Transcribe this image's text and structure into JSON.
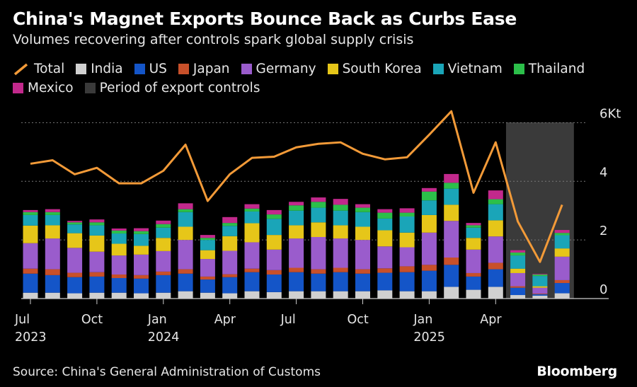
{
  "chart_data": {
    "type": "stacked_bar_line",
    "title": "China's Magnet Exports Bounce Back as Curbs Ease",
    "subtitle": "Volumes recovering after controls spark global supply crisis",
    "source": "Source: China's General Administration of Customs",
    "brand": "Bloomberg",
    "x": [
      "2023-07",
      "2023-08",
      "2023-09",
      "2023-10",
      "2023-11",
      "2023-12",
      "2024-01",
      "2024-02",
      "2024-03",
      "2024-04",
      "2024-05",
      "2024-06",
      "2024-07",
      "2024-08",
      "2024-09",
      "2024-10",
      "2024-11",
      "2024-12",
      "2025-01",
      "2025-02",
      "2025-03",
      "2025-04",
      "2025-05",
      "2025-06",
      "2025-07"
    ],
    "xticks": [
      {
        "value": "2023-07",
        "label": "Jul\n2023"
      },
      {
        "value": "2023-10",
        "label": "Oct"
      },
      {
        "value": "2024-01",
        "label": "Jan\n2024"
      },
      {
        "value": "2024-04",
        "label": "Apr"
      },
      {
        "value": "2024-07",
        "label": "Jul"
      },
      {
        "value": "2024-10",
        "label": "Oct"
      },
      {
        "value": "2025-01",
        "label": "Jan\n2025"
      },
      {
        "value": "2025-04",
        "label": "Apr"
      }
    ],
    "ylim": [
      0,
      6.3
    ],
    "yticks": [
      0,
      2,
      4,
      {
        "value": 6,
        "label": "6Kt"
      }
    ],
    "grid": true,
    "shaded": {
      "name": "Period of export controls",
      "color": "#3a3a3a",
      "from": "2025-05",
      "to": "2025-07"
    },
    "line": {
      "name": "Total",
      "color": "#f29a38",
      "values": [
        4.6,
        4.72,
        4.24,
        4.46,
        3.93,
        3.93,
        4.36,
        5.25,
        3.33,
        4.24,
        4.8,
        4.84,
        5.16,
        5.28,
        5.33,
        4.94,
        4.75,
        4.82,
        5.59,
        6.39,
        3.61,
        5.33,
        2.63,
        1.25,
        3.2
      ]
    },
    "series": [
      {
        "name": "India",
        "color": "#d0d0d0",
        "values": [
          0.2,
          0.2,
          0.18,
          0.2,
          0.2,
          0.18,
          0.2,
          0.25,
          0.2,
          0.18,
          0.25,
          0.22,
          0.25,
          0.25,
          0.25,
          0.25,
          0.28,
          0.25,
          0.25,
          0.4,
          0.3,
          0.4,
          0.12,
          0.1,
          0.18
        ]
      },
      {
        "name": "US",
        "color": "#1455c8",
        "values": [
          0.65,
          0.6,
          0.55,
          0.55,
          0.5,
          0.5,
          0.6,
          0.6,
          0.45,
          0.55,
          0.65,
          0.6,
          0.65,
          0.6,
          0.65,
          0.6,
          0.6,
          0.65,
          0.7,
          0.75,
          0.45,
          0.6,
          0.25,
          0.05,
          0.35
        ]
      },
      {
        "name": "Japan",
        "color": "#c8502a",
        "values": [
          0.17,
          0.2,
          0.15,
          0.15,
          0.12,
          0.12,
          0.12,
          0.15,
          0.1,
          0.1,
          0.12,
          0.15,
          0.15,
          0.15,
          0.15,
          0.15,
          0.15,
          0.2,
          0.2,
          0.25,
          0.12,
          0.22,
          0.05,
          0.02,
          0.1
        ]
      },
      {
        "name": "Germany",
        "color": "#9a5ccc",
        "values": [
          0.87,
          1.05,
          0.85,
          0.7,
          0.65,
          0.7,
          0.7,
          1.0,
          0.6,
          0.8,
          0.9,
          0.7,
          1.0,
          1.1,
          1.0,
          1.0,
          0.75,
          0.65,
          1.1,
          1.25,
          0.8,
          0.9,
          0.45,
          0.2,
          0.8
        ]
      },
      {
        "name": "South Korea",
        "color": "#e6c619",
        "values": [
          0.6,
          0.45,
          0.5,
          0.55,
          0.4,
          0.3,
          0.45,
          0.45,
          0.3,
          0.5,
          0.65,
          0.5,
          0.45,
          0.5,
          0.45,
          0.45,
          0.55,
          0.5,
          0.6,
          0.55,
          0.4,
          0.55,
          0.15,
          0.05,
          0.28
        ]
      },
      {
        "name": "Vietnam",
        "color": "#1aa5b8",
        "values": [
          0.36,
          0.35,
          0.3,
          0.35,
          0.35,
          0.4,
          0.35,
          0.5,
          0.35,
          0.35,
          0.4,
          0.55,
          0.5,
          0.5,
          0.5,
          0.5,
          0.4,
          0.55,
          0.5,
          0.55,
          0.35,
          0.55,
          0.45,
          0.35,
          0.45
        ]
      },
      {
        "name": "Thailand",
        "color": "#2cbf4a",
        "values": [
          0.1,
          0.1,
          0.07,
          0.1,
          0.1,
          0.1,
          0.12,
          0.1,
          0.07,
          0.1,
          0.1,
          0.15,
          0.18,
          0.2,
          0.2,
          0.15,
          0.2,
          0.13,
          0.3,
          0.2,
          0.08,
          0.17,
          0.1,
          0.05,
          0.08
        ]
      },
      {
        "name": "Mexico",
        "color": "#c2298c",
        "values": [
          0.07,
          0.1,
          0.05,
          0.1,
          0.07,
          0.1,
          0.12,
          0.2,
          0.1,
          0.2,
          0.15,
          0.15,
          0.12,
          0.15,
          0.2,
          0.12,
          0.12,
          0.15,
          0.12,
          0.3,
          0.08,
          0.3,
          0.08,
          0.02,
          0.1
        ]
      }
    ]
  }
}
